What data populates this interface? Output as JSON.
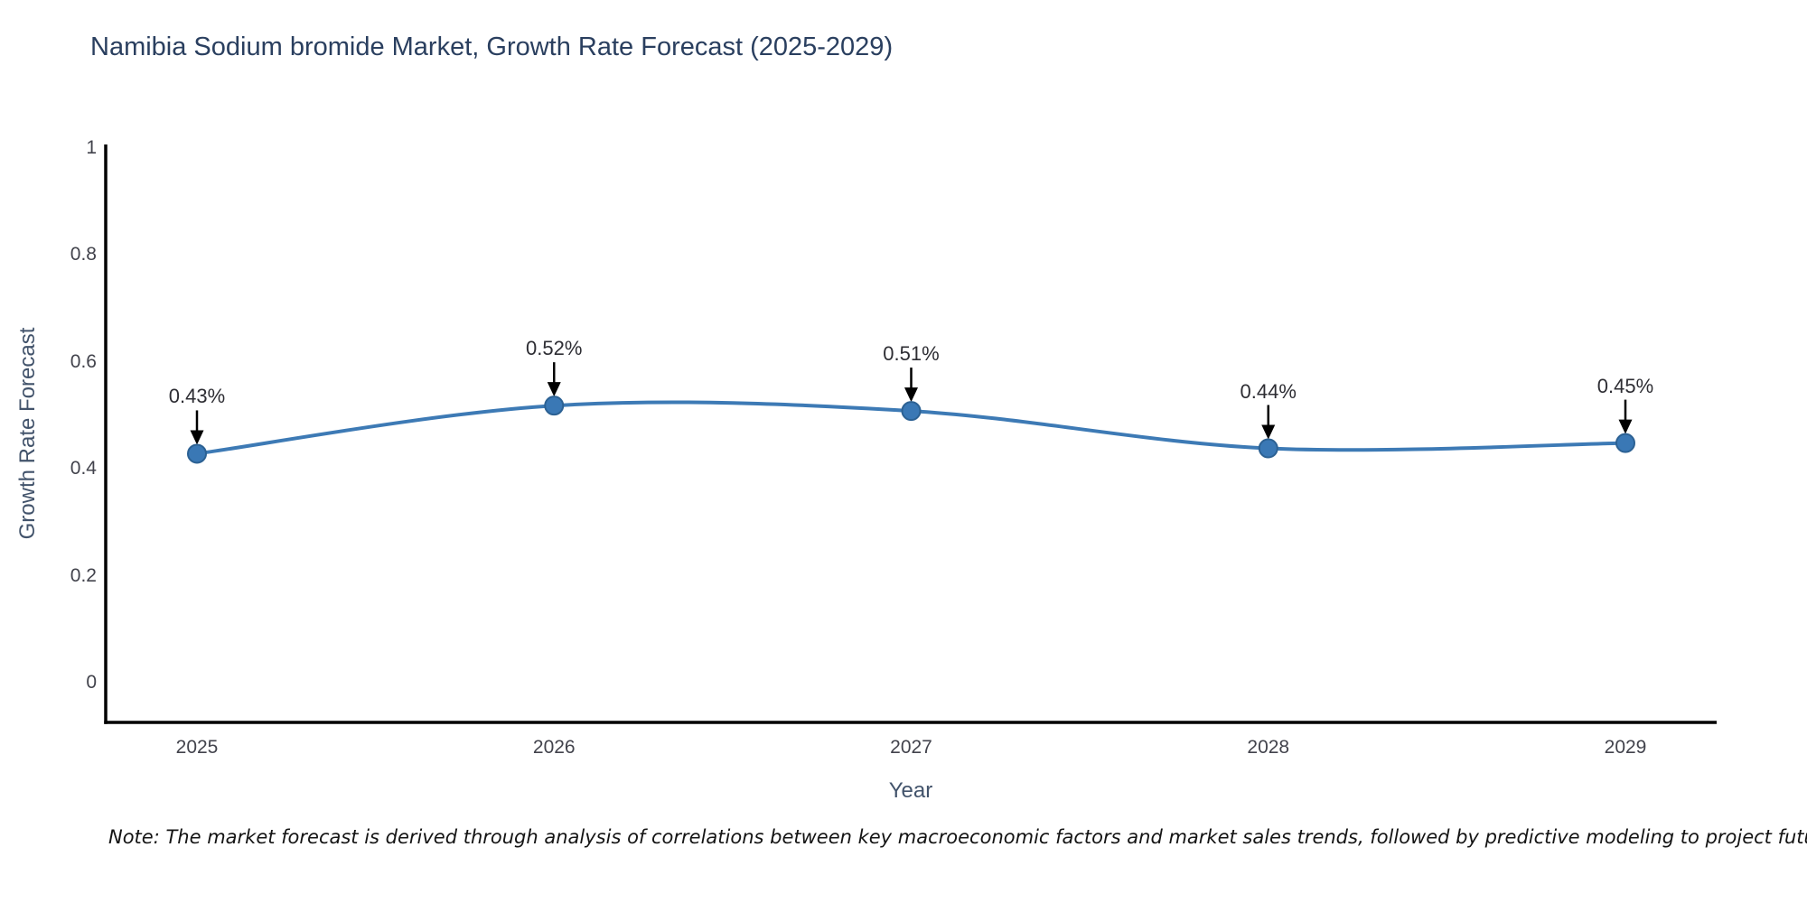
{
  "title": "Namibia Sodium bromide Market, Growth Rate Forecast (2025-2029)",
  "note": "Note: The market forecast is derived through analysis of correlations between key macroeconomic factors and market sales trends, followed by predictive modeling to project future sales",
  "chart_data": {
    "type": "line",
    "title": "Namibia Sodium bromide Market, Growth Rate Forecast (2025-2029)",
    "x": [
      2025,
      2026,
      2027,
      2028,
      2029
    ],
    "values": [
      0.43,
      0.52,
      0.51,
      0.44,
      0.45
    ],
    "point_labels": [
      "0.43%",
      "0.52%",
      "0.51%",
      "0.44%",
      "0.45%"
    ],
    "xlabel": "Year",
    "ylabel": "Growth Rate Forecast",
    "xtick_labels": [
      "2025",
      "2026",
      "2027",
      "2028",
      "2029"
    ],
    "ytick_values": [
      1,
      0.8,
      0.6,
      0.4,
      0.2,
      0
    ],
    "ytick_labels": [
      "1",
      "0.8",
      "0.6",
      "0.4",
      "0.2",
      "0"
    ],
    "ylim": [
      -0.073,
      1.008
    ],
    "grid": false,
    "legend_position": "none",
    "line_color": "#3d7ab5",
    "marker_color": "#3a78b5",
    "marker_edge_color": "#2c6193",
    "axis_line_color": "#000000",
    "annotation_arrow_color": "#000000"
  }
}
